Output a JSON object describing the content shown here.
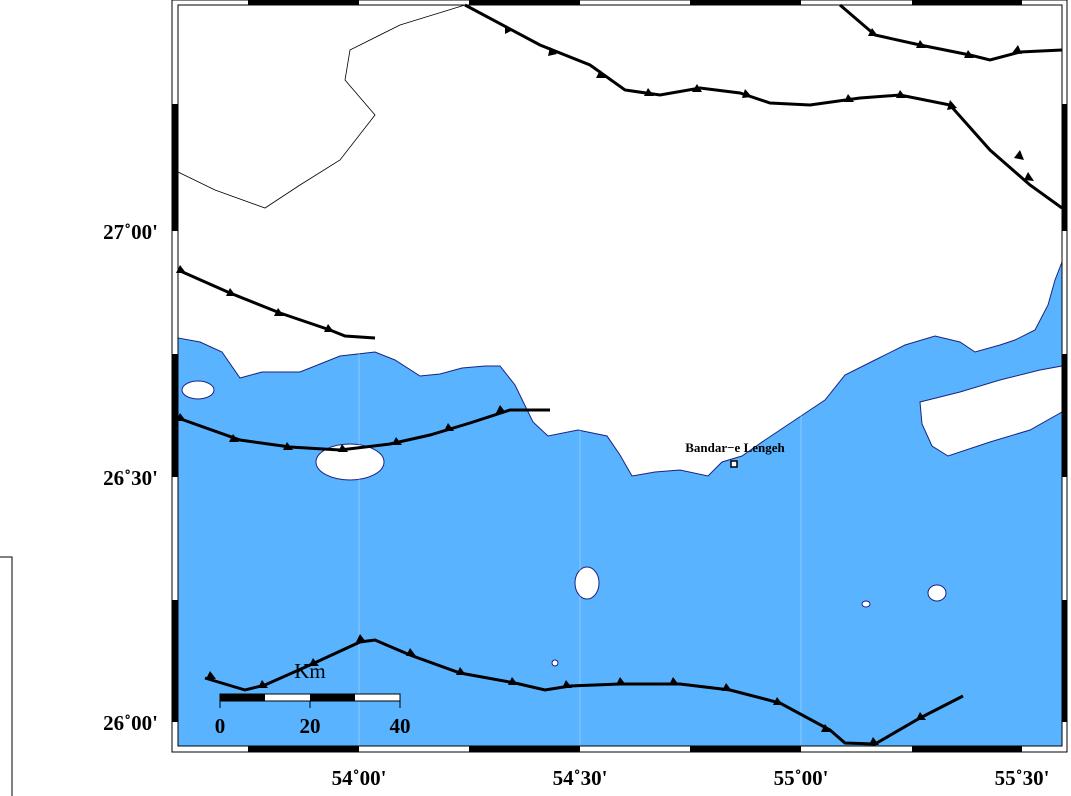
{
  "map": {
    "lat_labels": [
      "27˚00'",
      "26˚30'",
      "26˚00'"
    ],
    "lon_labels": [
      "54˚00'",
      "54˚30'",
      "55˚00'",
      "55˚30'"
    ],
    "place": "Bandar−e Lengeh",
    "scale_bar": {
      "unit": "Km",
      "labels": [
        "0",
        "20",
        "40"
      ]
    }
  }
}
